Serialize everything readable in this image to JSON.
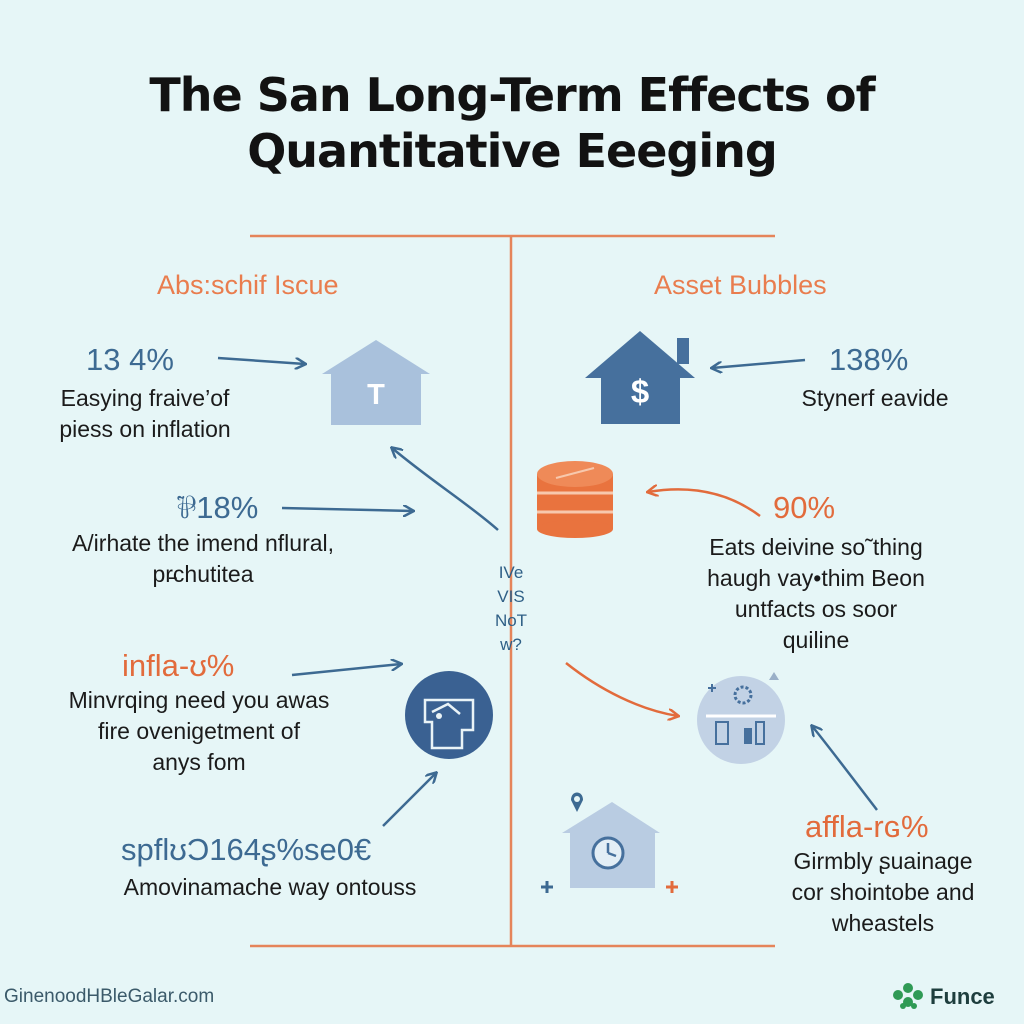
{
  "title": {
    "line1": "The San Long-Term Effects of",
    "line2": "Quantitative Eeeging"
  },
  "left": {
    "heading": "Abs:schif Iscue",
    "items": [
      {
        "stat": "13 4%",
        "lines": [
          "Easying fraive’of",
          "piess on inflation"
        ]
      },
      {
        "stat": "⅌18%",
        "lines": [
          "A/irhate the imend nflural,",
          "pr̵chutitea"
        ]
      },
      {
        "stat": "infla-ʊ%",
        "lines": [
          "Minvrqing need you awas",
          "fire ovenigetment of",
          "anys fom"
        ]
      },
      {
        "stat": "spflʊƆ164ʂ%se0€",
        "lines": [
          "Amovinamache way ontouss"
        ]
      }
    ]
  },
  "right": {
    "heading": "Asset Bubbles",
    "items": [
      {
        "stat": "138%",
        "lines": [
          "Stynerf eavide"
        ]
      },
      {
        "stat": "90%",
        "lines": [
          "Eats deivine so˜thing",
          "haugh vay•thim Beon",
          "untfacts os soor",
          "quiline"
        ]
      },
      {
        "stat": "affla-rɢ%",
        "lines": [
          "Girmbly ʂuainage",
          "cor shointobe and",
          "wheastels"
        ]
      }
    ]
  },
  "center_text": [
    "IVe",
    "VIS",
    "NoT",
    "w?"
  ],
  "icons": {
    "house_letter": "T",
    "house_dollar": "$"
  },
  "footer": {
    "source": "GinenoodHBleGalar.com",
    "brand": "Funcе",
    "brand_logo": "leaf-cluster-icon"
  },
  "colors": {
    "background": "#e6f6f7",
    "accent_orange": "#e97d4e",
    "accent_blue": "#3d6a92",
    "icon_light_blue": "#a9c1dc",
    "icon_dark_blue": "#46709d"
  }
}
